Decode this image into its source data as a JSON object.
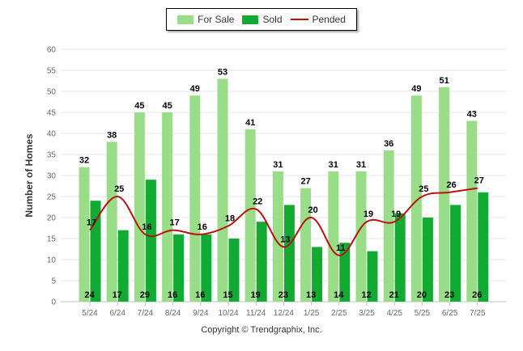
{
  "legend": {
    "for_sale": "For Sale",
    "sold": "Sold",
    "pended": "Pended"
  },
  "copyright": "Copyright © Trendgraphix, Inc.",
  "colors": {
    "for_sale": "#99DD88",
    "sold": "#11AA33",
    "pended": "#BB1111",
    "grid": "#E6E6E6",
    "axis_text": "#666666"
  },
  "chart_data": {
    "type": "bar",
    "xlabel": "",
    "ylabel": "Number of Homes",
    "ylim": [
      0,
      60
    ],
    "yticks": [
      0,
      5,
      10,
      15,
      20,
      25,
      30,
      35,
      40,
      45,
      50,
      55,
      60
    ],
    "grid": true,
    "legend_position": "top",
    "categories": [
      "5/24",
      "6/24",
      "7/24",
      "8/24",
      "9/24",
      "10/24",
      "11/24",
      "12/24",
      "1/25",
      "2/25",
      "3/25",
      "4/25",
      "5/25",
      "6/25",
      "7/25"
    ],
    "series": [
      {
        "name": "For Sale",
        "type": "bar",
        "values": [
          32,
          38,
          45,
          45,
          49,
          53,
          41,
          31,
          27,
          31,
          31,
          36,
          49,
          51,
          43
        ]
      },
      {
        "name": "Sold",
        "type": "bar",
        "values": [
          24,
          17,
          29,
          16,
          16,
          15,
          19,
          23,
          13,
          14,
          12,
          21,
          20,
          23,
          26
        ]
      },
      {
        "name": "Pended",
        "type": "line",
        "values": [
          17,
          25,
          16,
          17,
          16,
          18,
          22,
          13,
          20,
          11,
          19,
          19,
          25,
          26,
          27
        ]
      }
    ]
  }
}
